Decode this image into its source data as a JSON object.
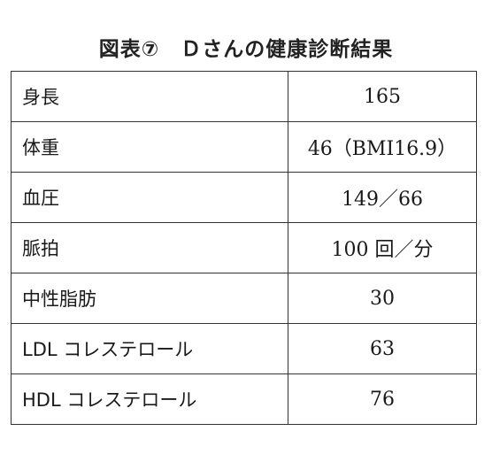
{
  "title": "図表⑦　Ｄさんの健康診断結果",
  "rows": [
    {
      "label": "身長",
      "value": "165"
    },
    {
      "label": "体重",
      "value": "46（BMI16.9）"
    },
    {
      "label": "血圧",
      "value": "149／66"
    },
    {
      "label": "脈拍",
      "value": "100 回／分"
    },
    {
      "label": "中性脂肪",
      "value": "30"
    },
    {
      "label": "LDL コレステロール",
      "value": "63"
    },
    {
      "label": "HDL コレステロール",
      "value": "76"
    }
  ]
}
